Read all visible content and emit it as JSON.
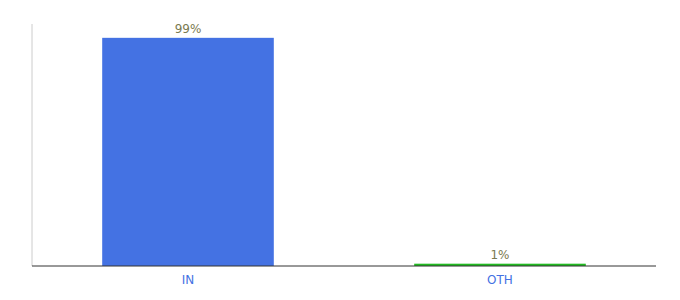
{
  "chart_data": {
    "type": "bar",
    "categories": [
      "IN",
      "OTH"
    ],
    "values": [
      99,
      1
    ],
    "value_labels": [
      "99%",
      "1%"
    ],
    "colors": [
      "#4472E3",
      "#22BB22"
    ],
    "ylim": [
      0,
      105
    ],
    "data_labels": true,
    "tick_labels": "x",
    "grid": false
  }
}
